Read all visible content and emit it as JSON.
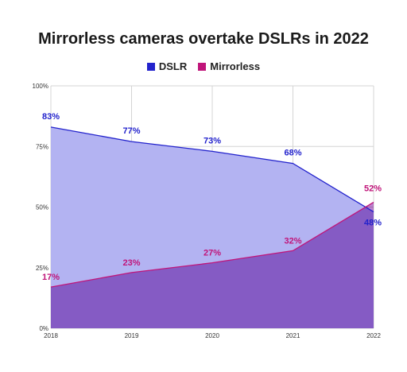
{
  "chart_data": {
    "type": "area",
    "title": "Mirrorless cameras overtake DSLRs in 2022",
    "x": [
      "2018",
      "2019",
      "2020",
      "2021",
      "2022"
    ],
    "y_ticks": [
      "0%",
      "25%",
      "50%",
      "75%",
      "100%"
    ],
    "ylim": [
      0,
      100
    ],
    "grid": true,
    "legend_position": "top",
    "series": [
      {
        "name": "DSLR",
        "values": [
          83,
          77,
          73,
          68,
          48
        ],
        "labels": [
          "83%",
          "77%",
          "73%",
          "68%",
          "48%"
        ],
        "color": "#2222cc",
        "fill": "#b3b3f2"
      },
      {
        "name": "Mirrorless",
        "values": [
          17,
          23,
          27,
          32,
          52
        ],
        "labels": [
          "17%",
          "23%",
          "27%",
          "32%",
          "52%"
        ],
        "color": "#c0157a",
        "fill": "#b36bc7"
      }
    ]
  }
}
